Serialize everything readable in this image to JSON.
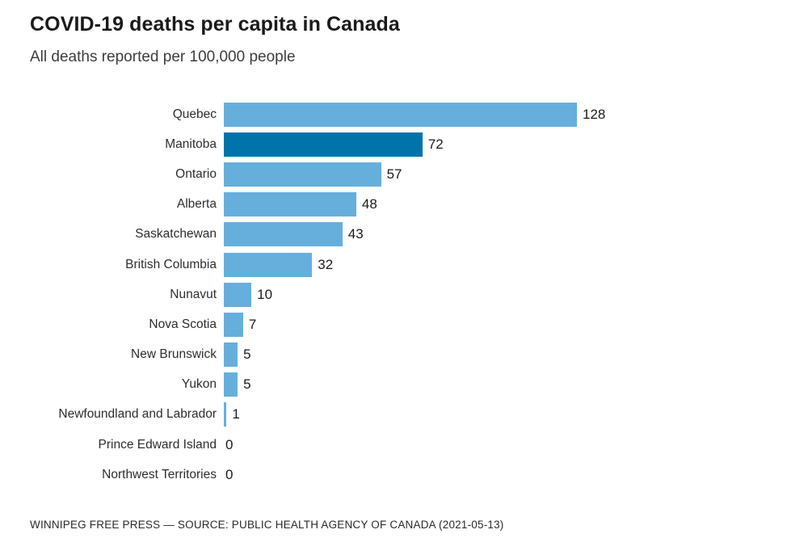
{
  "page": {
    "title": "COVID-19 deaths per capita in Canada",
    "subtitle": "All deaths reported per 100,000 people",
    "footer": "WINNIPEG FREE PRESS — SOURCE: PUBLIC HEALTH AGENCY OF CANADA (2021-05-13)"
  },
  "colors": {
    "bar": "#66AFDC",
    "bar_highlight": "#0074AA",
    "title_text": "#1a1a1a",
    "label_text": "#2d2d2d"
  },
  "chart_data": {
    "type": "bar",
    "orientation": "horizontal",
    "title": "COVID-19 deaths per capita in Canada",
    "subtitle": "All deaths reported per 100,000 people",
    "categories": [
      "Quebec",
      "Manitoba",
      "Ontario",
      "Alberta",
      "Saskatchewan",
      "British Columbia",
      "Nunavut",
      "Nova Scotia",
      "New Brunswick",
      "Yukon",
      "Newfoundland and Labrador",
      "Prince Edward Island",
      "Northwest Territories"
    ],
    "values": [
      128,
      72,
      57,
      48,
      43,
      32,
      10,
      7,
      5,
      5,
      1,
      0,
      0
    ],
    "highlighted_category": "Manitoba",
    "xlabel": "",
    "ylabel": "",
    "xlim": [
      0,
      128
    ],
    "grid": false,
    "legend": false,
    "value_labels_shown": true,
    "source": "WINNIPEG FREE PRESS — SOURCE: PUBLIC HEALTH AGENCY OF CANADA (2021-05-13)"
  }
}
